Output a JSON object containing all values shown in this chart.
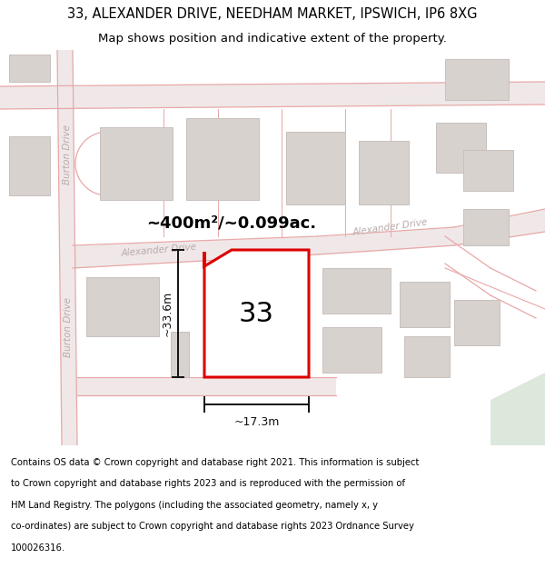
{
  "title_line1": "33, ALEXANDER DRIVE, NEEDHAM MARKET, IPSWICH, IP6 8XG",
  "title_line2": "Map shows position and indicative extent of the property.",
  "area_label": "~400m²/~0.099ac.",
  "number_label": "33",
  "dim_width": "~17.3m",
  "dim_height": "~33.6m",
  "street_alexander_left": "Alexander Drive",
  "street_alexander_right": "Alexander Drive",
  "street_burton_upper": "Burton Drive",
  "street_burton_lower": "Burton Drive",
  "footer_lines": [
    "Contains OS data © Crown copyright and database right 2021. This information is subject",
    "to Crown copyright and database rights 2023 and is reproduced with the permission of",
    "HM Land Registry. The polygons (including the associated geometry, namely x, y",
    "co-ordinates) are subject to Crown copyright and database rights 2023 Ordnance Survey",
    "100026316."
  ],
  "map_bg": "#f5f0ee",
  "road_line": "#e8a8a8",
  "road_fill": "#f0e8e8",
  "building_fill": "#d8d2ce",
  "building_edge": "#c8c0bc",
  "plot_stroke": "#dd0000",
  "plot_fill": "#ffffff",
  "dim_color": "#111111",
  "green_fill": "#dce8dc",
  "street_color": "#b8aaaa",
  "title_fontsize": 10.5,
  "subtitle_fontsize": 9.5,
  "footer_fontsize": 7.2,
  "area_fontsize": 13,
  "number_fontsize": 22,
  "street_fontsize": 7.5,
  "dim_fontsize": 9
}
